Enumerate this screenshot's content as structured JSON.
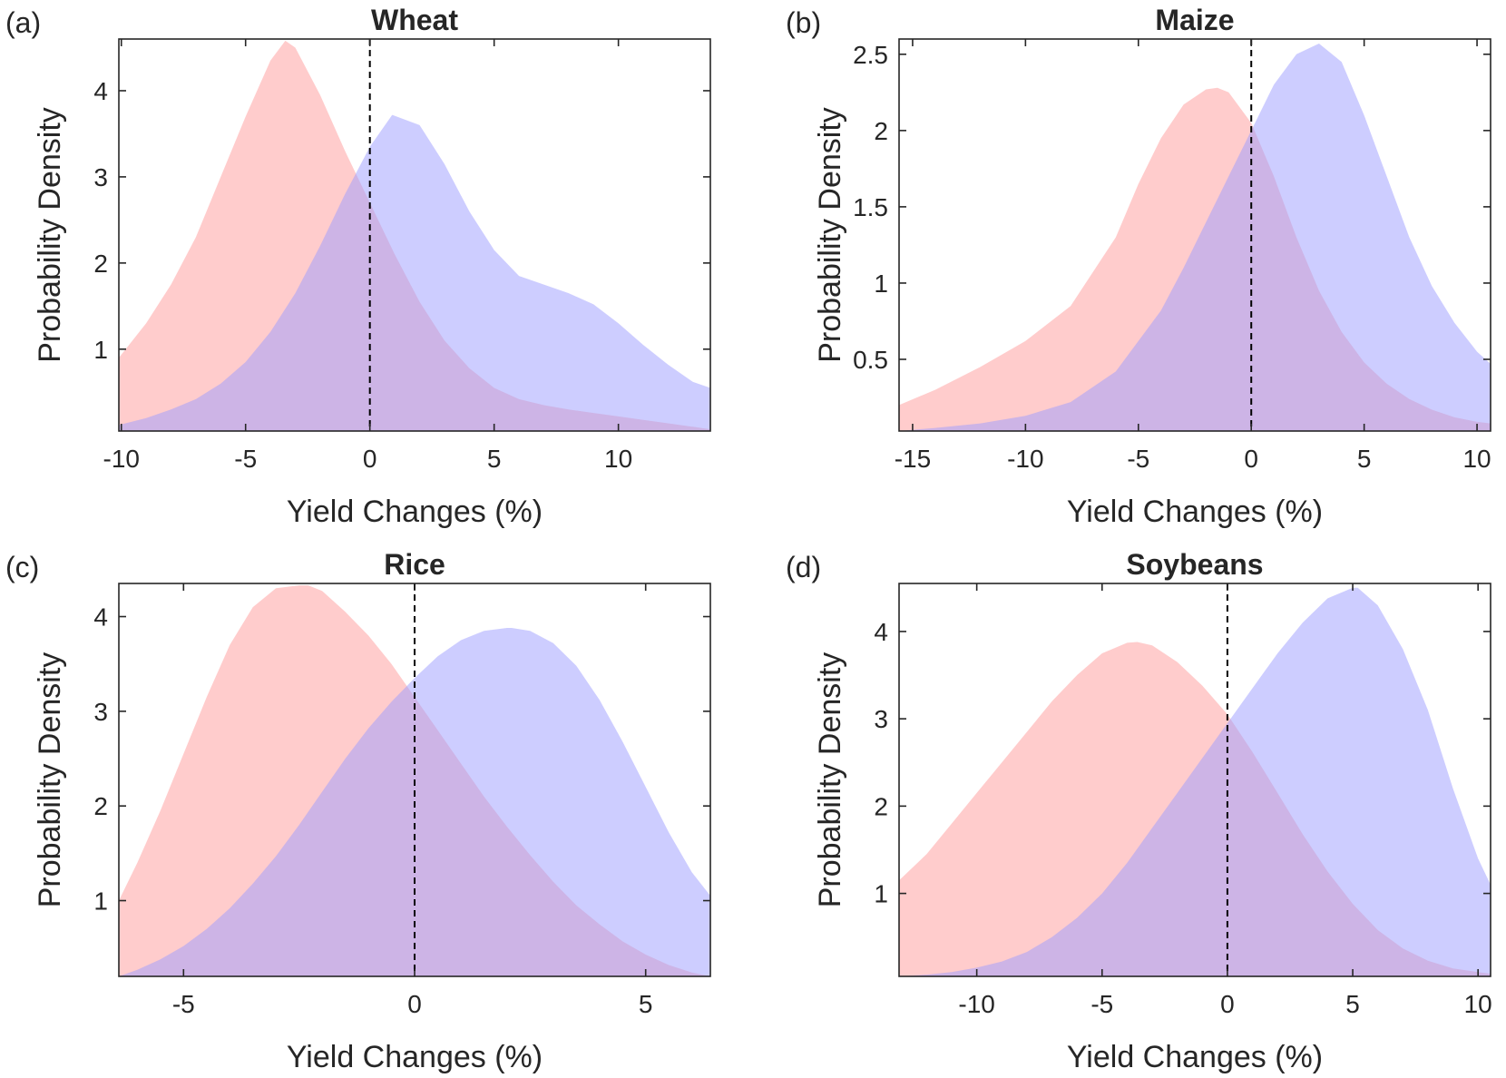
{
  "colors": {
    "series_1": "#ff9a9a",
    "series_2": "#9c9cff",
    "series_opacity": 0.5,
    "axes": "#262626"
  },
  "chart_data": [
    {
      "type": "area",
      "panel_label": "(a)",
      "title": "Wheat",
      "xlabel": "Yield Changes (%)",
      "ylabel": "Probability Density",
      "xlim": [
        -10.1,
        13.7
      ],
      "ylim": [
        0.05,
        4.6
      ],
      "xticks": [
        -10,
        -5,
        0,
        5,
        10
      ],
      "xtick_labels": [
        "-10",
        "-5",
        "0",
        "5",
        "10"
      ],
      "yticks": [
        1,
        2,
        3,
        4
      ],
      "ytick_labels": [
        "1",
        "2",
        "3",
        "4"
      ],
      "reference_line_x": 0,
      "grid": false,
      "series": [
        {
          "x": [
            -10.1,
            -9,
            -8,
            -7,
            -6,
            -5,
            -4,
            -3.4,
            -3,
            -2,
            -1,
            0,
            1,
            2,
            3,
            4,
            5,
            6,
            7,
            8,
            9,
            10,
            11,
            12,
            13,
            13.7
          ],
          "values": [
            0.9,
            1.3,
            1.75,
            2.3,
            3,
            3.7,
            4.35,
            4.58,
            4.5,
            3.95,
            3.3,
            2.7,
            2.1,
            1.55,
            1.1,
            0.78,
            0.55,
            0.42,
            0.35,
            0.3,
            0.26,
            0.22,
            0.18,
            0.14,
            0.1,
            0.07
          ]
        },
        {
          "x": [
            -10.1,
            -9,
            -8,
            -7,
            -6,
            -5,
            -4,
            -3,
            -2,
            -1,
            0,
            0.9,
            2,
            3,
            4,
            5,
            6,
            7,
            8,
            9,
            10,
            11,
            12,
            13,
            13.7
          ],
          "values": [
            0.12,
            0.2,
            0.3,
            0.42,
            0.6,
            0.85,
            1.2,
            1.65,
            2.2,
            2.8,
            3.35,
            3.72,
            3.6,
            3.15,
            2.6,
            2.15,
            1.85,
            1.75,
            1.65,
            1.52,
            1.3,
            1.05,
            0.82,
            0.62,
            0.55
          ]
        }
      ]
    },
    {
      "type": "area",
      "panel_label": "(b)",
      "title": "Maize",
      "xlabel": "Yield Changes (%)",
      "ylabel": "Probability Density",
      "xlim": [
        -15.6,
        10.6
      ],
      "ylim": [
        0.03,
        2.6
      ],
      "xticks": [
        -15,
        -10,
        -5,
        0,
        5,
        10
      ],
      "xtick_labels": [
        "-15",
        "-10",
        "-5",
        "0",
        "5",
        "10"
      ],
      "yticks": [
        0.5,
        1,
        1.5,
        2,
        2.5
      ],
      "ytick_labels": [
        "0.5",
        "1",
        "1.5",
        "2",
        "2.5"
      ],
      "reference_line_x": 0,
      "grid": false,
      "series": [
        {
          "x": [
            -15.6,
            -14,
            -12,
            -10,
            -8,
            -6,
            -5,
            -4,
            -3,
            -2,
            -1.5,
            -1,
            0,
            1,
            2,
            3,
            4,
            5,
            6,
            7,
            8,
            9,
            10,
            10.6
          ],
          "values": [
            0.2,
            0.3,
            0.45,
            0.62,
            0.85,
            1.3,
            1.65,
            1.95,
            2.17,
            2.27,
            2.28,
            2.25,
            2.05,
            1.7,
            1.3,
            0.95,
            0.68,
            0.48,
            0.34,
            0.24,
            0.17,
            0.12,
            0.09,
            0.08
          ]
        },
        {
          "x": [
            -15.6,
            -14,
            -12,
            -10,
            -8,
            -6,
            -4,
            -3,
            -2,
            -1,
            0,
            1,
            2,
            3,
            4,
            5,
            6,
            7,
            8,
            9,
            10,
            10.6
          ],
          "values": [
            0.03,
            0.05,
            0.08,
            0.13,
            0.22,
            0.42,
            0.82,
            1.1,
            1.4,
            1.7,
            2.0,
            2.3,
            2.5,
            2.57,
            2.45,
            2.1,
            1.7,
            1.3,
            0.98,
            0.74,
            0.55,
            0.47
          ]
        }
      ]
    },
    {
      "type": "area",
      "panel_label": "(c)",
      "title": "Rice",
      "xlabel": "Yield Changes (%)",
      "ylabel": "Probability Density",
      "xlim": [
        -6.4,
        6.4
      ],
      "ylim": [
        0.2,
        4.35
      ],
      "xticks": [
        -5,
        0,
        5
      ],
      "xtick_labels": [
        "-5",
        "0",
        "5"
      ],
      "yticks": [
        1,
        2,
        3,
        4
      ],
      "ytick_labels": [
        "1",
        "2",
        "3",
        "4"
      ],
      "reference_line_x": 0,
      "grid": false,
      "series": [
        {
          "x": [
            -6.4,
            -6,
            -5.5,
            -5,
            -4.5,
            -4,
            -3.5,
            -3,
            -2.5,
            -2.3,
            -2,
            -1.5,
            -1,
            -0.5,
            0,
            0.5,
            1,
            1.5,
            2,
            2.5,
            3,
            3.5,
            4,
            4.5,
            5,
            5.5,
            6,
            6.4
          ],
          "values": [
            1.0,
            1.4,
            1.95,
            2.55,
            3.15,
            3.7,
            4.1,
            4.3,
            4.33,
            4.33,
            4.27,
            4.05,
            3.8,
            3.5,
            3.15,
            2.8,
            2.45,
            2.1,
            1.78,
            1.48,
            1.2,
            0.95,
            0.75,
            0.57,
            0.43,
            0.32,
            0.24,
            0.2
          ]
        },
        {
          "x": [
            -6.4,
            -6,
            -5.5,
            -5,
            -4.5,
            -4,
            -3.5,
            -3,
            -2.5,
            -2,
            -1.5,
            -1,
            -0.5,
            0,
            0.5,
            1,
            1.5,
            2,
            2.1,
            2.5,
            3,
            3.5,
            4,
            4.5,
            5,
            5.5,
            6,
            6.4
          ],
          "values": [
            0.2,
            0.27,
            0.38,
            0.52,
            0.7,
            0.92,
            1.18,
            1.47,
            1.8,
            2.15,
            2.5,
            2.82,
            3.1,
            3.35,
            3.58,
            3.75,
            3.85,
            3.88,
            3.88,
            3.85,
            3.72,
            3.48,
            3.12,
            2.68,
            2.2,
            1.72,
            1.3,
            1.05
          ]
        }
      ]
    },
    {
      "type": "area",
      "panel_label": "(d)",
      "title": "Soybeans",
      "xlabel": "Yield Changes (%)",
      "ylabel": "Probability Density",
      "xlim": [
        -13.1,
        10.5
      ],
      "ylim": [
        0.05,
        4.55
      ],
      "xticks": [
        -10,
        -5,
        0,
        5,
        10
      ],
      "xtick_labels": [
        "-10",
        "-5",
        "0",
        "5",
        "10"
      ],
      "yticks": [
        1,
        2,
        3,
        4
      ],
      "ytick_labels": [
        "1",
        "2",
        "3",
        "4"
      ],
      "reference_line_x": 0,
      "grid": false,
      "series": [
        {
          "x": [
            -13.1,
            -12,
            -11,
            -10,
            -9,
            -8,
            -7,
            -6,
            -5,
            -4,
            -3.6,
            -3,
            -2,
            -1,
            0,
            1,
            2,
            3,
            4,
            5,
            6,
            7,
            8,
            9,
            10,
            10.5
          ],
          "values": [
            1.15,
            1.45,
            1.8,
            2.15,
            2.5,
            2.85,
            3.2,
            3.5,
            3.75,
            3.87,
            3.88,
            3.84,
            3.65,
            3.38,
            3.05,
            2.62,
            2.15,
            1.68,
            1.25,
            0.88,
            0.58,
            0.37,
            0.23,
            0.14,
            0.1,
            0.08
          ]
        },
        {
          "x": [
            -13.1,
            -12,
            -11,
            -10,
            -9,
            -8,
            -7,
            -6,
            -5,
            -4,
            -3,
            -2,
            -1,
            0,
            1,
            2,
            3,
            4,
            5,
            5.2,
            6,
            7,
            8,
            9,
            10,
            10.5
          ],
          "values": [
            0.05,
            0.07,
            0.1,
            0.15,
            0.22,
            0.33,
            0.5,
            0.72,
            1.0,
            1.35,
            1.75,
            2.15,
            2.55,
            2.95,
            3.35,
            3.75,
            4.1,
            4.38,
            4.5,
            4.5,
            4.3,
            3.8,
            3.1,
            2.2,
            1.4,
            1.1
          ]
        }
      ]
    }
  ]
}
